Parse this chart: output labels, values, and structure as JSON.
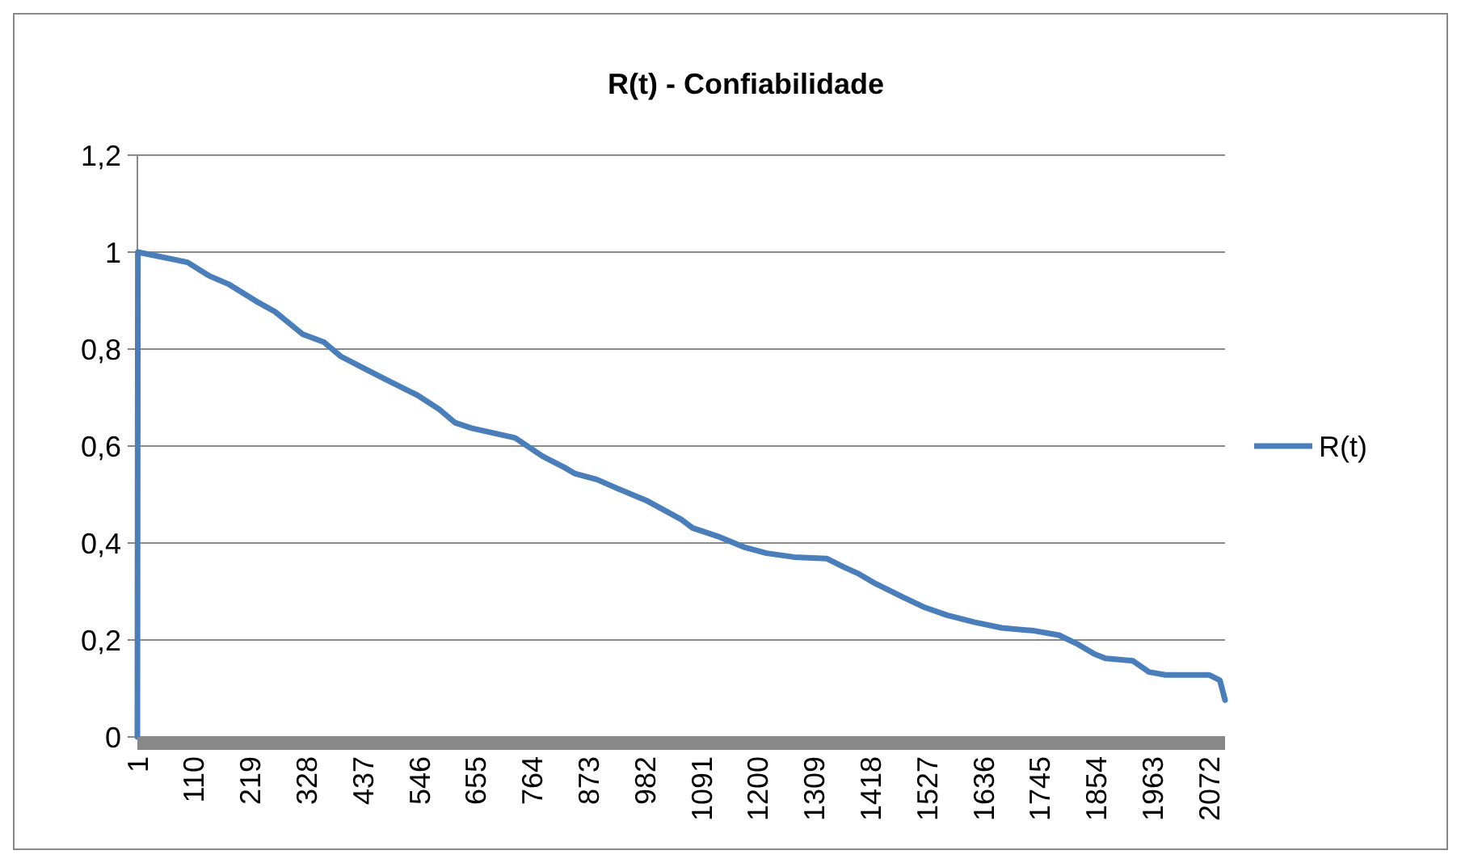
{
  "chart_data": {
    "type": "line",
    "title": "R(t) - Confiabilidade",
    "x": [
      1,
      2,
      98,
      140,
      177,
      230,
      267,
      320,
      362,
      394,
      436,
      478,
      542,
      584,
      615,
      647,
      731,
      784,
      826,
      847,
      889,
      932,
      984,
      1053,
      1074,
      1122,
      1175,
      1217,
      1270,
      1333,
      1365,
      1396,
      1428,
      1481,
      1523,
      1566,
      1618,
      1671,
      1734,
      1782,
      1819,
      1851,
      1872,
      1925,
      1956,
      1988,
      2072,
      2093,
      2103
    ],
    "series": [
      {
        "name": "R(t)",
        "color": "#4a7ebb",
        "values": [
          0,
          1,
          0.979,
          0.951,
          0.934,
          0.899,
          0.877,
          0.831,
          0.814,
          0.785,
          0.762,
          0.739,
          0.705,
          0.676,
          0.648,
          0.637,
          0.617,
          0.579,
          0.556,
          0.543,
          0.531,
          0.511,
          0.488,
          0.448,
          0.431,
          0.414,
          0.391,
          0.379,
          0.371,
          0.368,
          0.351,
          0.336,
          0.316,
          0.288,
          0.267,
          0.251,
          0.237,
          0.225,
          0.219,
          0.21,
          0.191,
          0.171,
          0.162,
          0.157,
          0.134,
          0.128,
          0.128,
          0.117,
          0.076
        ]
      }
    ],
    "xlim": [
      1,
      2103
    ],
    "xticks": [
      1,
      110,
      219,
      328,
      437,
      546,
      655,
      764,
      873,
      982,
      1091,
      1200,
      1309,
      1418,
      1527,
      1636,
      1745,
      1854,
      1963,
      2072
    ],
    "ylim": [
      0,
      1.2
    ],
    "yticks": [
      0,
      {
        "value": 0.2,
        "label": "0,2"
      },
      {
        "value": 0.4,
        "label": "0,4"
      },
      {
        "value": 0.6,
        "label": "0,6"
      },
      {
        "value": 0.8,
        "label": "0,8"
      },
      1,
      {
        "value": 1.2,
        "label": "1,2"
      }
    ],
    "grid": "y",
    "legend": "right",
    "marker": "none",
    "line_style": "solid"
  }
}
